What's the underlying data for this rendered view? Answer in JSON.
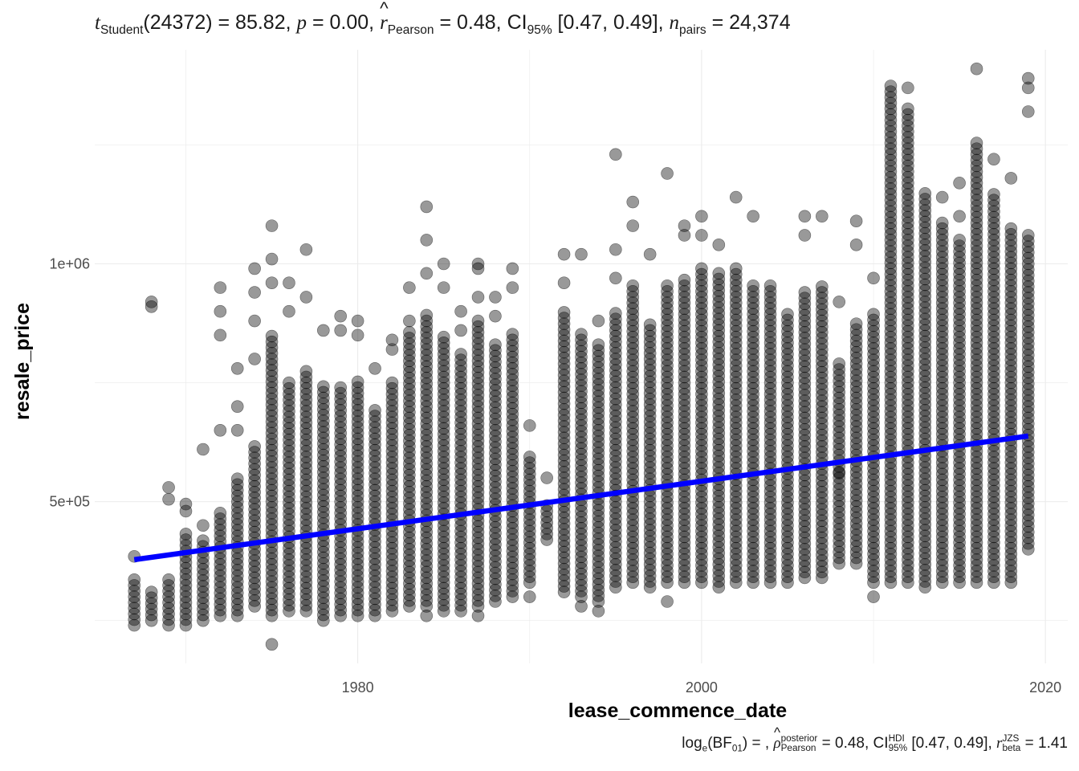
{
  "chart_data": {
    "type": "scatter",
    "xlabel": "lease_commence_date",
    "ylabel": "resale_price",
    "x_ticks": [
      1980,
      2000,
      2020
    ],
    "y_ticks": [
      500000,
      1000000
    ],
    "y_tick_labels": [
      "5e+05",
      "1e+06"
    ],
    "xlim": [
      1964.7,
      2021.3
    ],
    "ylim": [
      160000,
      1450000
    ],
    "grid": true,
    "point_color": "#000000",
    "point_alpha": 0.4,
    "fit_line": {
      "color": "#0000ff",
      "x": [
        1967,
        2019
      ],
      "y": [
        378000,
        638000
      ]
    },
    "columns": [
      {
        "x": 1967,
        "lo": 240000,
        "hi": 340000,
        "out": [
          385000
        ]
      },
      {
        "x": 1968,
        "lo": 250000,
        "hi": 320000,
        "out": [
          920000,
          910000
        ]
      },
      {
        "x": 1969,
        "lo": 240000,
        "hi": 340000,
        "out": [
          530000,
          505000
        ]
      },
      {
        "x": 1970,
        "lo": 240000,
        "hi": 440000,
        "out": [
          495000,
          480000
        ]
      },
      {
        "x": 1971,
        "lo": 250000,
        "hi": 420000,
        "out": [
          610000,
          450000
        ]
      },
      {
        "x": 1972,
        "lo": 260000,
        "hi": 480000,
        "out": [
          950000,
          900000,
          850000,
          650000
        ]
      },
      {
        "x": 1973,
        "lo": 260000,
        "hi": 550000,
        "out": [
          780000,
          700000,
          650000
        ]
      },
      {
        "x": 1974,
        "lo": 280000,
        "hi": 620000,
        "out": [
          990000,
          940000,
          880000,
          800000
        ]
      },
      {
        "x": 1975,
        "lo": 260000,
        "hi": 850000,
        "out": [
          1080000,
          1010000,
          960000,
          200000
        ]
      },
      {
        "x": 1976,
        "lo": 270000,
        "hi": 760000,
        "out": [
          960000,
          900000
        ]
      },
      {
        "x": 1977,
        "lo": 270000,
        "hi": 780000,
        "out": [
          1030000,
          930000
        ]
      },
      {
        "x": 1978,
        "lo": 250000,
        "hi": 750000,
        "out": [
          860000
        ]
      },
      {
        "x": 1979,
        "lo": 260000,
        "hi": 750000,
        "out": [
          890000,
          860000
        ]
      },
      {
        "x": 1980,
        "lo": 260000,
        "hi": 760000,
        "out": [
          880000,
          850000
        ]
      },
      {
        "x": 1981,
        "lo": 260000,
        "hi": 700000,
        "out": [
          780000
        ]
      },
      {
        "x": 1982,
        "lo": 270000,
        "hi": 760000,
        "out": [
          840000,
          820000
        ]
      },
      {
        "x": 1983,
        "lo": 280000,
        "hi": 860000,
        "out": [
          950000,
          880000
        ]
      },
      {
        "x": 1984,
        "lo": 280000,
        "hi": 900000,
        "out": [
          1120000,
          1050000,
          980000,
          260000
        ]
      },
      {
        "x": 1985,
        "lo": 270000,
        "hi": 850000,
        "out": [
          1000000,
          950000
        ]
      },
      {
        "x": 1986,
        "lo": 270000,
        "hi": 820000,
        "out": [
          900000,
          860000
        ]
      },
      {
        "x": 1987,
        "lo": 280000,
        "hi": 880000,
        "out": [
          1000000,
          990000,
          930000,
          260000
        ]
      },
      {
        "x": 1988,
        "lo": 290000,
        "hi": 840000,
        "out": [
          930000,
          890000
        ]
      },
      {
        "x": 1989,
        "lo": 300000,
        "hi": 860000,
        "out": [
          990000,
          950000
        ]
      },
      {
        "x": 1990,
        "lo": 330000,
        "hi": 600000,
        "out": [
          660000,
          300000
        ]
      },
      {
        "x": 1991,
        "lo": 420000,
        "hi": 500000,
        "out": [
          550000
        ]
      },
      {
        "x": 1992,
        "lo": 310000,
        "hi": 900000,
        "out": [
          1020000,
          960000
        ]
      },
      {
        "x": 1993,
        "lo": 300000,
        "hi": 860000,
        "out": [
          1020000,
          280000
        ]
      },
      {
        "x": 1994,
        "lo": 290000,
        "hi": 840000,
        "out": [
          880000,
          270000
        ]
      },
      {
        "x": 1995,
        "lo": 320000,
        "hi": 900000,
        "out": [
          1230000,
          1030000,
          970000
        ]
      },
      {
        "x": 1996,
        "lo": 330000,
        "hi": 960000,
        "out": [
          1130000,
          1080000
        ]
      },
      {
        "x": 1997,
        "lo": 320000,
        "hi": 880000,
        "out": [
          1020000
        ]
      },
      {
        "x": 1998,
        "lo": 330000,
        "hi": 960000,
        "out": [
          1190000,
          290000
        ]
      },
      {
        "x": 1999,
        "lo": 330000,
        "hi": 970000,
        "out": [
          1080000,
          1060000
        ]
      },
      {
        "x": 2000,
        "lo": 330000,
        "hi": 990000,
        "out": [
          1100000,
          1060000
        ]
      },
      {
        "x": 2001,
        "lo": 320000,
        "hi": 990000,
        "out": [
          1040000
        ]
      },
      {
        "x": 2002,
        "lo": 330000,
        "hi": 1000000,
        "out": [
          1140000
        ]
      },
      {
        "x": 2003,
        "lo": 330000,
        "hi": 960000,
        "out": [
          1100000
        ]
      },
      {
        "x": 2004,
        "lo": 330000,
        "hi": 960000,
        "out": []
      },
      {
        "x": 2005,
        "lo": 330000,
        "hi": 900000,
        "out": []
      },
      {
        "x": 2006,
        "lo": 340000,
        "hi": 940000,
        "out": [
          1100000,
          1060000
        ]
      },
      {
        "x": 2007,
        "lo": 340000,
        "hi": 960000,
        "out": [
          1100000
        ]
      },
      {
        "x": 2008,
        "lo": 370000,
        "hi": 800000,
        "out": [
          920000,
          560000
        ]
      },
      {
        "x": 2009,
        "lo": 370000,
        "hi": 880000,
        "out": [
          1090000,
          1040000
        ]
      },
      {
        "x": 2010,
        "lo": 330000,
        "hi": 900000,
        "out": [
          970000,
          300000
        ]
      },
      {
        "x": 2011,
        "lo": 330000,
        "hi": 1380000,
        "out": []
      },
      {
        "x": 2012,
        "lo": 330000,
        "hi": 1330000,
        "out": [
          1370000
        ]
      },
      {
        "x": 2013,
        "lo": 320000,
        "hi": 1150000,
        "out": []
      },
      {
        "x": 2014,
        "lo": 330000,
        "hi": 1090000,
        "out": [
          1140000
        ]
      },
      {
        "x": 2015,
        "lo": 330000,
        "hi": 1060000,
        "out": [
          1170000,
          1100000
        ]
      },
      {
        "x": 2016,
        "lo": 330000,
        "hi": 1260000,
        "out": [
          1410000
        ]
      },
      {
        "x": 2017,
        "lo": 330000,
        "hi": 1150000,
        "out": [
          1220000
        ]
      },
      {
        "x": 2018,
        "lo": 330000,
        "hi": 1080000,
        "out": [
          1180000
        ]
      },
      {
        "x": 2019,
        "lo": 400000,
        "hi": 1060000,
        "out": [
          1390000,
          1370000,
          1320000
        ]
      }
    ]
  },
  "stats": {
    "subtitle": {
      "t": "t",
      "t_sub": "Student",
      "df_text": "(24372) = 85.82, ",
      "p": "p",
      "p_text": " = 0.00, ",
      "r": "r",
      "r_hat": "^",
      "r_sub": "Pearson",
      "r_text": " = 0.48, CI",
      "ci_sub": "95%",
      "ci_text": " [0.47, 0.49], ",
      "n": "n",
      "n_sub": "pairs",
      "n_text": " = 24,374"
    },
    "caption": {
      "log": "log",
      "log_sub": "e",
      "bf": "(BF",
      "bf_sub": "01",
      "bf_text": ") = , ",
      "rho": "ρ",
      "rho_hat": "^",
      "rho_sup": "posterior",
      "rho_sub": "Pearson",
      "rho_text": " = 0.48, CI",
      "ci_sup": "HDI",
      "ci_sub": "95%",
      "ci_text": " [0.47, 0.49], ",
      "r": "r",
      "r_sup": "JZS",
      "r_sub": "beta",
      "r_text": " = 1.41"
    }
  }
}
